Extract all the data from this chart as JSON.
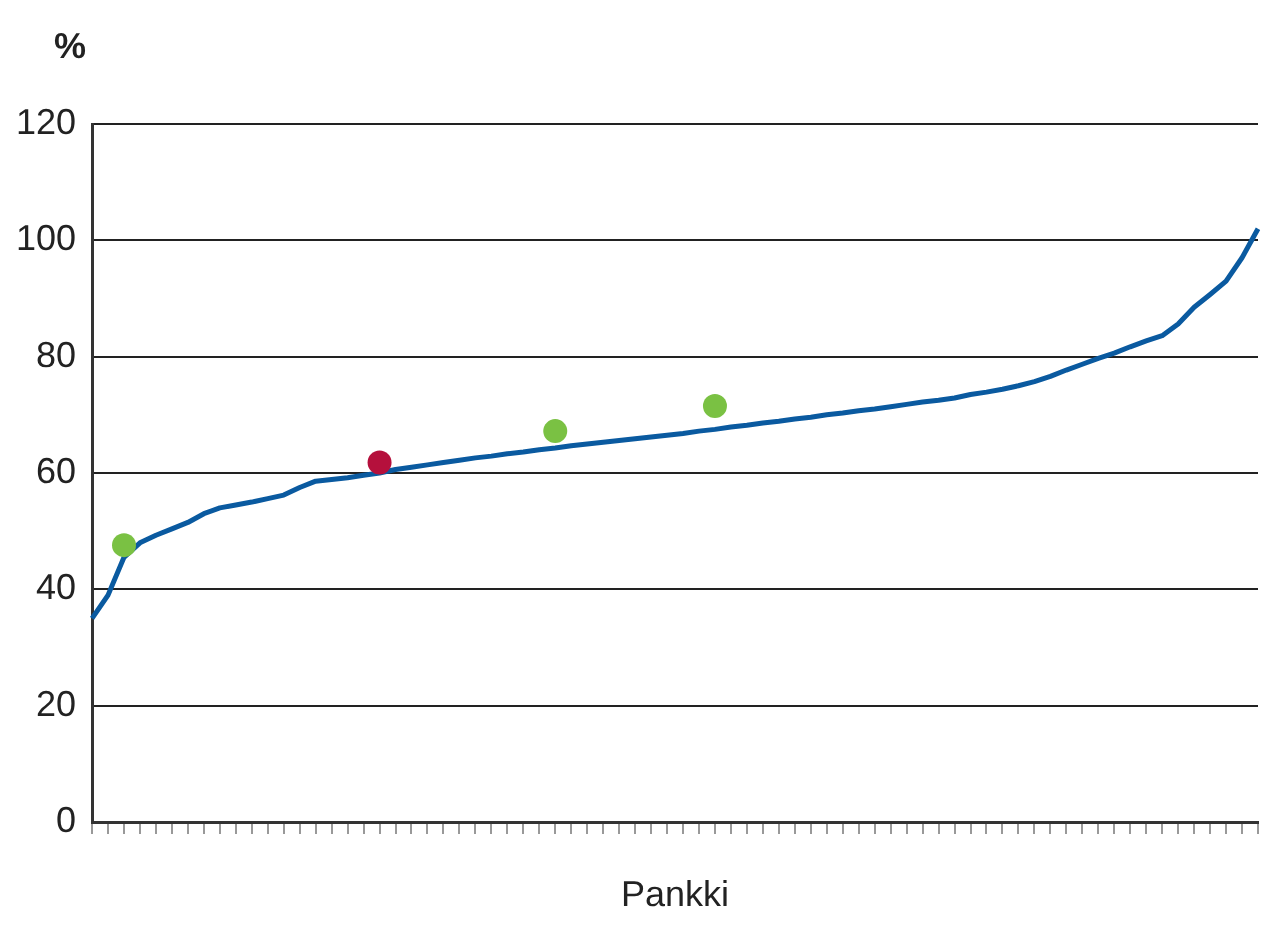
{
  "chart_data": {
    "type": "line",
    "ylabel": "%",
    "xlabel": "Pankki",
    "categories": [
      null,
      null,
      null,
      null,
      null,
      null,
      null,
      null,
      null,
      null,
      null,
      null,
      null,
      null,
      null,
      null,
      null,
      null,
      null,
      null,
      null,
      null,
      null,
      null,
      null,
      null,
      null,
      null,
      null,
      null,
      null,
      null,
      null,
      null,
      null,
      null,
      null,
      null,
      null,
      null,
      null,
      null,
      null,
      null,
      null,
      null,
      null,
      null,
      null,
      null,
      null,
      null,
      null,
      null,
      null,
      null,
      null,
      null,
      null,
      null,
      null,
      null,
      null,
      null,
      null,
      null,
      null,
      null,
      null,
      null,
      null,
      null,
      null,
      null
    ],
    "ylim": [
      0,
      120
    ],
    "yticks": [
      0,
      20,
      40,
      60,
      80,
      100,
      120
    ],
    "grid": "y",
    "legend": false,
    "series": [
      {
        "color": "#0a5aa0",
        "marker": "none",
        "values": [
          35,
          39,
          45.5,
          48,
          49.3,
          50.4,
          51.5,
          53,
          54,
          54.5,
          55,
          55.6,
          56.2,
          57.5,
          58.6,
          58.9,
          59.2,
          59.6,
          60,
          60.6,
          61,
          61.4,
          61.8,
          62.2,
          62.6,
          62.9,
          63.3,
          63.6,
          64,
          64.3,
          64.7,
          65,
          65.3,
          65.6,
          65.9,
          66.2,
          66.5,
          66.8,
          67.2,
          67.5,
          67.9,
          68.2,
          68.6,
          68.9,
          69.3,
          69.6,
          70,
          70.3,
          70.7,
          71,
          71.4,
          71.8,
          72.2,
          72.5,
          72.9,
          73.5,
          73.9,
          74.4,
          75,
          75.7,
          76.6,
          77.7,
          78.7,
          79.7,
          80.6,
          81.7,
          82.7,
          83.6,
          85.6,
          88.5,
          90.7,
          93,
          97,
          102
        ]
      },
      {
        "type": "scatter",
        "color": "#7ac143",
        "marker": "circle",
        "values": [
          null,
          null,
          47.6,
          null,
          null,
          null,
          null,
          null,
          null,
          null,
          null,
          null,
          null,
          null,
          null,
          null,
          null,
          null,
          null,
          null,
          null,
          null,
          null,
          null,
          null,
          null,
          null,
          null,
          null,
          67.2,
          null,
          null,
          null,
          null,
          null,
          null,
          null,
          null,
          null,
          71.5,
          null,
          null,
          null,
          null,
          null,
          null,
          null,
          null,
          null,
          null,
          null,
          null,
          null,
          null,
          null,
          null,
          null,
          null,
          null,
          null,
          null,
          null,
          null,
          null,
          null,
          null,
          null,
          null,
          null,
          null,
          null,
          null,
          null,
          null
        ]
      },
      {
        "type": "scatter",
        "color": "#b5103c",
        "marker": "circle",
        "values": [
          null,
          null,
          null,
          null,
          null,
          null,
          null,
          null,
          null,
          null,
          null,
          null,
          null,
          null,
          null,
          null,
          null,
          null,
          61.8,
          null,
          null,
          null,
          null,
          null,
          null,
          null,
          null,
          null,
          null,
          null,
          null,
          null,
          null,
          null,
          null,
          null,
          null,
          null,
          null,
          null,
          null,
          null,
          null,
          null,
          null,
          null,
          null,
          null,
          null,
          null,
          null,
          null,
          null,
          null,
          null,
          null,
          null,
          null,
          null,
          null,
          null,
          null,
          null,
          null,
          null,
          null,
          null,
          null,
          null,
          null,
          null,
          null,
          null,
          null
        ]
      }
    ]
  }
}
